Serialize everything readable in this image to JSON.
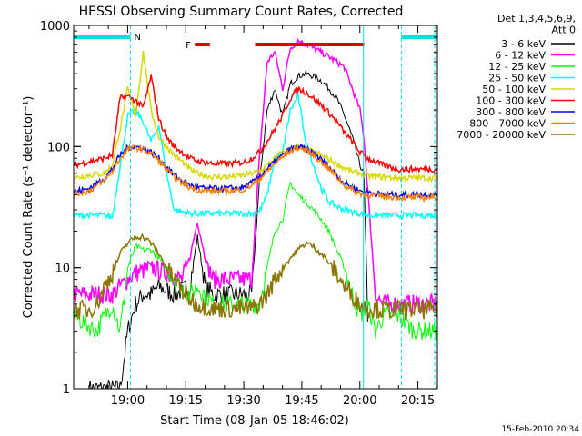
{
  "chart_data": {
    "type": "line",
    "title": "HESSI Observing Summary Count Rates, Corrected",
    "xlabel": "Start Time (08-Jan-05 18:46:02)",
    "ylabel": "Corrected Count Rate (s⁻¹ detector⁻¹)",
    "y_scale": "log",
    "ylim": [
      1,
      1000
    ],
    "xlim_minutes_from_start": [
      0,
      94
    ],
    "x_start": "18:46:02",
    "x_ticks": [
      "19:00",
      "19:15",
      "19:30",
      "19:45",
      "20:00",
      "20:15"
    ],
    "y_ticks": [
      "1",
      "10",
      "100",
      "1000"
    ],
    "legend_header": [
      "Det 1,3,4,5,6,9,",
      "Att 0"
    ],
    "legend_position": "top-right",
    "footer_date": "15-Feb-2010 20:34",
    "flags": {
      "N_label": "N",
      "F_label": "F",
      "N_segments": [
        [
          0,
          14.7
        ],
        [
          84.7,
          94
        ]
      ],
      "F_segments": [
        [
          31.3,
          35.2
        ],
        [
          46.9,
          75.1
        ]
      ],
      "N_color": "#00e0e0",
      "F_color": "#e00000",
      "vlines": [
        {
          "t": 14.7,
          "style": "dashed"
        },
        {
          "t": 74.9,
          "style": "solid"
        },
        {
          "t": 84.7,
          "style": "dashed"
        },
        {
          "t": 93.3,
          "style": "dashed"
        }
      ]
    },
    "series": [
      {
        "name": "3 - 6 keV",
        "color": "#000000",
        "t": [
          4,
          12,
          14,
          16,
          18,
          20,
          22,
          26,
          30,
          32,
          34,
          36,
          40,
          46,
          48,
          50,
          52,
          54,
          56,
          58,
          60,
          62,
          64,
          66,
          68,
          70,
          72,
          74,
          75,
          76
        ],
        "v": [
          1,
          1,
          3,
          5,
          6,
          6,
          7,
          6,
          7,
          18,
          7,
          6,
          6,
          6,
          50,
          200,
          300,
          180,
          330,
          380,
          400,
          380,
          350,
          300,
          250,
          180,
          120,
          70,
          60,
          4
        ]
      },
      {
        "name": "6 - 12 keV",
        "color": "#ff00ff",
        "t": [
          0,
          10,
          12,
          14,
          16,
          20,
          24,
          28,
          30,
          32,
          34,
          36,
          40,
          46,
          48,
          50,
          52,
          54,
          56,
          58,
          60,
          62,
          64,
          66,
          68,
          70,
          72,
          74,
          75,
          78,
          80,
          94
        ],
        "v": [
          6,
          6,
          7,
          8,
          9,
          10,
          9,
          8,
          12,
          24,
          12,
          8,
          8,
          8,
          80,
          500,
          600,
          300,
          650,
          750,
          700,
          650,
          600,
          550,
          500,
          450,
          300,
          200,
          120,
          6,
          5,
          5
        ]
      },
      {
        "name": "12 - 25 keV",
        "color": "#00ff00",
        "t": [
          0,
          6,
          8,
          10,
          12,
          14,
          16,
          18,
          20,
          22,
          26,
          30,
          32,
          34,
          36,
          40,
          44,
          46,
          48,
          50,
          52,
          54,
          56,
          58,
          60,
          62,
          64,
          66,
          68,
          70,
          72,
          74,
          76,
          78,
          80,
          84,
          88,
          94
        ],
        "v": [
          4,
          3,
          4,
          5,
          3,
          10,
          15,
          14,
          14,
          12,
          8,
          6,
          7,
          6,
          5,
          5,
          5,
          5,
          5,
          10,
          20,
          25,
          50,
          40,
          35,
          30,
          25,
          20,
          14,
          10,
          6,
          4,
          5,
          3,
          4,
          4,
          3,
          3
        ]
      },
      {
        "name": "25 - 50 keV",
        "color": "#00ffff",
        "t": [
          0,
          4,
          8,
          10,
          12,
          14,
          16,
          18,
          20,
          22,
          24,
          26,
          28,
          30,
          32,
          34,
          36,
          40,
          44,
          46,
          48,
          50,
          52,
          54,
          56,
          58,
          60,
          62,
          64,
          66,
          68,
          70,
          72,
          74,
          76,
          80,
          84,
          88,
          94
        ],
        "v": [
          27,
          27,
          27,
          26,
          70,
          180,
          200,
          160,
          110,
          150,
          60,
          30,
          29,
          28,
          28,
          28,
          28,
          28,
          28,
          28,
          29,
          40,
          80,
          90,
          200,
          260,
          110,
          70,
          45,
          35,
          32,
          30,
          29,
          28,
          27,
          27,
          27,
          27,
          27
        ]
      },
      {
        "name": "50 - 100 keV",
        "color": "#d8d800",
        "t": [
          0,
          4,
          8,
          10,
          12,
          14,
          16,
          18,
          20,
          22,
          24,
          26,
          28,
          30,
          32,
          34,
          36,
          40,
          44,
          46,
          48,
          50,
          52,
          54,
          56,
          58,
          60,
          62,
          64,
          66,
          68,
          70,
          72,
          74,
          76,
          80,
          84,
          88,
          94
        ],
        "v": [
          55,
          58,
          60,
          70,
          140,
          300,
          180,
          600,
          200,
          120,
          100,
          85,
          75,
          65,
          60,
          58,
          56,
          56,
          58,
          60,
          62,
          70,
          80,
          90,
          95,
          100,
          95,
          90,
          85,
          78,
          72,
          66,
          62,
          60,
          57,
          56,
          55,
          55,
          55
        ]
      },
      {
        "name": "100 - 300 keV",
        "color": "#ff0000",
        "t": [
          0,
          4,
          8,
          10,
          12,
          14,
          16,
          18,
          20,
          22,
          24,
          26,
          28,
          30,
          32,
          34,
          36,
          40,
          44,
          46,
          48,
          50,
          52,
          54,
          56,
          58,
          60,
          62,
          64,
          66,
          68,
          70,
          72,
          74,
          76,
          80,
          84,
          88,
          94
        ],
        "v": [
          70,
          75,
          80,
          85,
          250,
          260,
          240,
          210,
          380,
          170,
          120,
          100,
          90,
          80,
          76,
          74,
          72,
          72,
          74,
          80,
          90,
          110,
          140,
          180,
          250,
          300,
          280,
          250,
          220,
          190,
          160,
          130,
          110,
          90,
          80,
          70,
          65,
          65,
          65
        ]
      },
      {
        "name": "300 - 800 keV",
        "color": "#0000ff",
        "t": [
          0,
          4,
          8,
          10,
          12,
          14,
          16,
          18,
          20,
          22,
          24,
          26,
          28,
          30,
          32,
          34,
          36,
          40,
          44,
          46,
          48,
          50,
          52,
          54,
          56,
          58,
          60,
          62,
          64,
          66,
          68,
          70,
          72,
          74,
          76,
          80,
          84,
          88,
          94
        ],
        "v": [
          42,
          45,
          55,
          65,
          85,
          98,
          100,
          96,
          90,
          80,
          68,
          58,
          52,
          48,
          46,
          45,
          45,
          45,
          46,
          50,
          56,
          65,
          75,
          85,
          95,
          100,
          95,
          88,
          78,
          68,
          58,
          50,
          46,
          43,
          42,
          40,
          40,
          40,
          40
        ]
      },
      {
        "name": "800 - 7000 keV",
        "color": "#ff8000",
        "t": [
          0,
          4,
          8,
          10,
          12,
          14,
          16,
          18,
          20,
          22,
          24,
          26,
          28,
          30,
          32,
          34,
          36,
          40,
          44,
          46,
          48,
          50,
          52,
          54,
          56,
          58,
          60,
          62,
          64,
          66,
          68,
          70,
          72,
          74,
          76,
          80,
          84,
          88,
          94
        ],
        "v": [
          40,
          43,
          52,
          62,
          80,
          95,
          98,
          94,
          88,
          76,
          65,
          56,
          50,
          46,
          44,
          43,
          43,
          43,
          44,
          48,
          54,
          62,
          72,
          82,
          92,
          98,
          93,
          85,
          75,
          65,
          56,
          48,
          44,
          41,
          40,
          39,
          38,
          38,
          38
        ]
      },
      {
        "name": "7000 - 20000 keV",
        "color": "#8b7500",
        "t": [
          0,
          4,
          6,
          8,
          10,
          12,
          14,
          16,
          18,
          20,
          22,
          24,
          26,
          28,
          30,
          32,
          34,
          36,
          40,
          44,
          46,
          48,
          50,
          52,
          54,
          56,
          58,
          60,
          62,
          64,
          66,
          68,
          70,
          72,
          74,
          76,
          80,
          84,
          88,
          94
        ],
        "v": [
          4.5,
          4.5,
          5,
          7,
          9,
          13,
          16,
          18,
          18,
          16,
          13,
          10,
          8,
          6.5,
          5.5,
          5,
          4.8,
          4.6,
          4.6,
          4.6,
          4.6,
          5,
          6,
          8,
          10,
          12,
          14,
          16,
          15,
          13,
          11,
          9,
          7,
          6,
          5,
          4.6,
          4.5,
          4.5,
          4.5,
          4.5
        ]
      }
    ]
  }
}
